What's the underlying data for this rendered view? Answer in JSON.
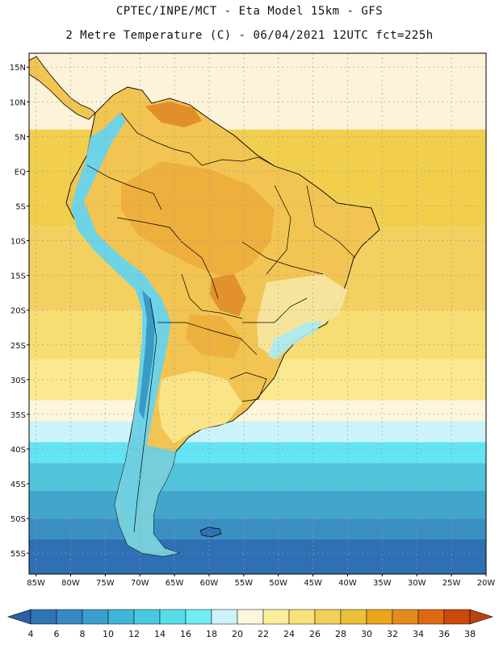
{
  "header": {
    "title_line1": "CPTEC/INPE/MCT -  Eta Model 15km - GFS",
    "title_line2": "2 Metre Temperature (C) - 06/04/2021 12UTC fct=225h"
  },
  "map": {
    "region": "South America",
    "variable": "2 Metre Temperature (C)",
    "lon_range": [
      -86,
      -20
    ],
    "lat_range": [
      -58,
      17
    ],
    "lat_ticks": [
      {
        "value": 15,
        "label": "15N"
      },
      {
        "value": 10,
        "label": "10N"
      },
      {
        "value": 5,
        "label": "5N"
      },
      {
        "value": 0,
        "label": "EQ"
      },
      {
        "value": -5,
        "label": "5S"
      },
      {
        "value": -10,
        "label": "10S"
      },
      {
        "value": -15,
        "label": "15S"
      },
      {
        "value": -20,
        "label": "20S"
      },
      {
        "value": -25,
        "label": "25S"
      },
      {
        "value": -30,
        "label": "30S"
      },
      {
        "value": -35,
        "label": "35S"
      },
      {
        "value": -40,
        "label": "40S"
      },
      {
        "value": -45,
        "label": "45S"
      },
      {
        "value": -50,
        "label": "50S"
      },
      {
        "value": -55,
        "label": "55S"
      }
    ],
    "lon_ticks": [
      {
        "value": -85,
        "label": "85W"
      },
      {
        "value": -80,
        "label": "80W"
      },
      {
        "value": -75,
        "label": "75W"
      },
      {
        "value": -70,
        "label": "70W"
      },
      {
        "value": -65,
        "label": "65W"
      },
      {
        "value": -60,
        "label": "60W"
      },
      {
        "value": -55,
        "label": "55W"
      },
      {
        "value": -50,
        "label": "50W"
      },
      {
        "value": -45,
        "label": "45W"
      },
      {
        "value": -40,
        "label": "40W"
      },
      {
        "value": -35,
        "label": "35W"
      },
      {
        "value": -30,
        "label": "30W"
      },
      {
        "value": -25,
        "label": "25W"
      },
      {
        "value": -20,
        "label": "20W"
      }
    ],
    "ocean_bands": [
      {
        "lat_top": 17,
        "lat_bottom": 6,
        "color": "#fdf3d9"
      },
      {
        "lat_top": 6,
        "lat_bottom": -8,
        "color": "#f1cf4d"
      },
      {
        "lat_top": -8,
        "lat_bottom": -20,
        "color": "#f3d060"
      },
      {
        "lat_top": -20,
        "lat_bottom": -27,
        "color": "#f7de73"
      },
      {
        "lat_top": -27,
        "lat_bottom": -33,
        "color": "#fbe98f"
      },
      {
        "lat_top": -33,
        "lat_bottom": -36,
        "color": "#fdf6dd"
      },
      {
        "lat_top": -36,
        "lat_bottom": -39,
        "color": "#cdf3fa"
      },
      {
        "lat_top": -39,
        "lat_bottom": -42,
        "color": "#63e4f5"
      },
      {
        "lat_top": -42,
        "lat_bottom": -46,
        "color": "#50c5db"
      },
      {
        "lat_top": -46,
        "lat_bottom": -50,
        "color": "#41a5cc"
      },
      {
        "lat_top": -50,
        "lat_bottom": -53,
        "color": "#3a8fc2"
      },
      {
        "lat_top": -53,
        "lat_bottom": -58,
        "color": "#2f6fb3"
      }
    ],
    "land_colors": {
      "land_fill": "#f2c451",
      "amazon": "#eeac3a",
      "hot_spot": "#e08a25",
      "andes": "#6fd3e6",
      "andes_peak": "#2f8fbf",
      "south_patagonia": "#6ecfe2",
      "southeast_cool": "#f7e6a0",
      "river_plate": "#fbe88e"
    }
  },
  "colorbar": {
    "ticks": [
      "4",
      "6",
      "8",
      "10",
      "12",
      "14",
      "16",
      "18",
      "20",
      "22",
      "24",
      "26",
      "28",
      "30",
      "32",
      "34",
      "36",
      "38"
    ],
    "colors": [
      "#2b5fa6",
      "#2f74b4",
      "#3689c2",
      "#3a9fce",
      "#3fb6d8",
      "#49c9df",
      "#57dde8",
      "#71ecf3",
      "#cdf3fa",
      "#fdf6dc",
      "#fbef9b",
      "#f7e27b",
      "#f1cf58",
      "#ecbf3b",
      "#eaa61c",
      "#e58a1c",
      "#de6915",
      "#c94a0b",
      "#b8430f"
    ]
  }
}
